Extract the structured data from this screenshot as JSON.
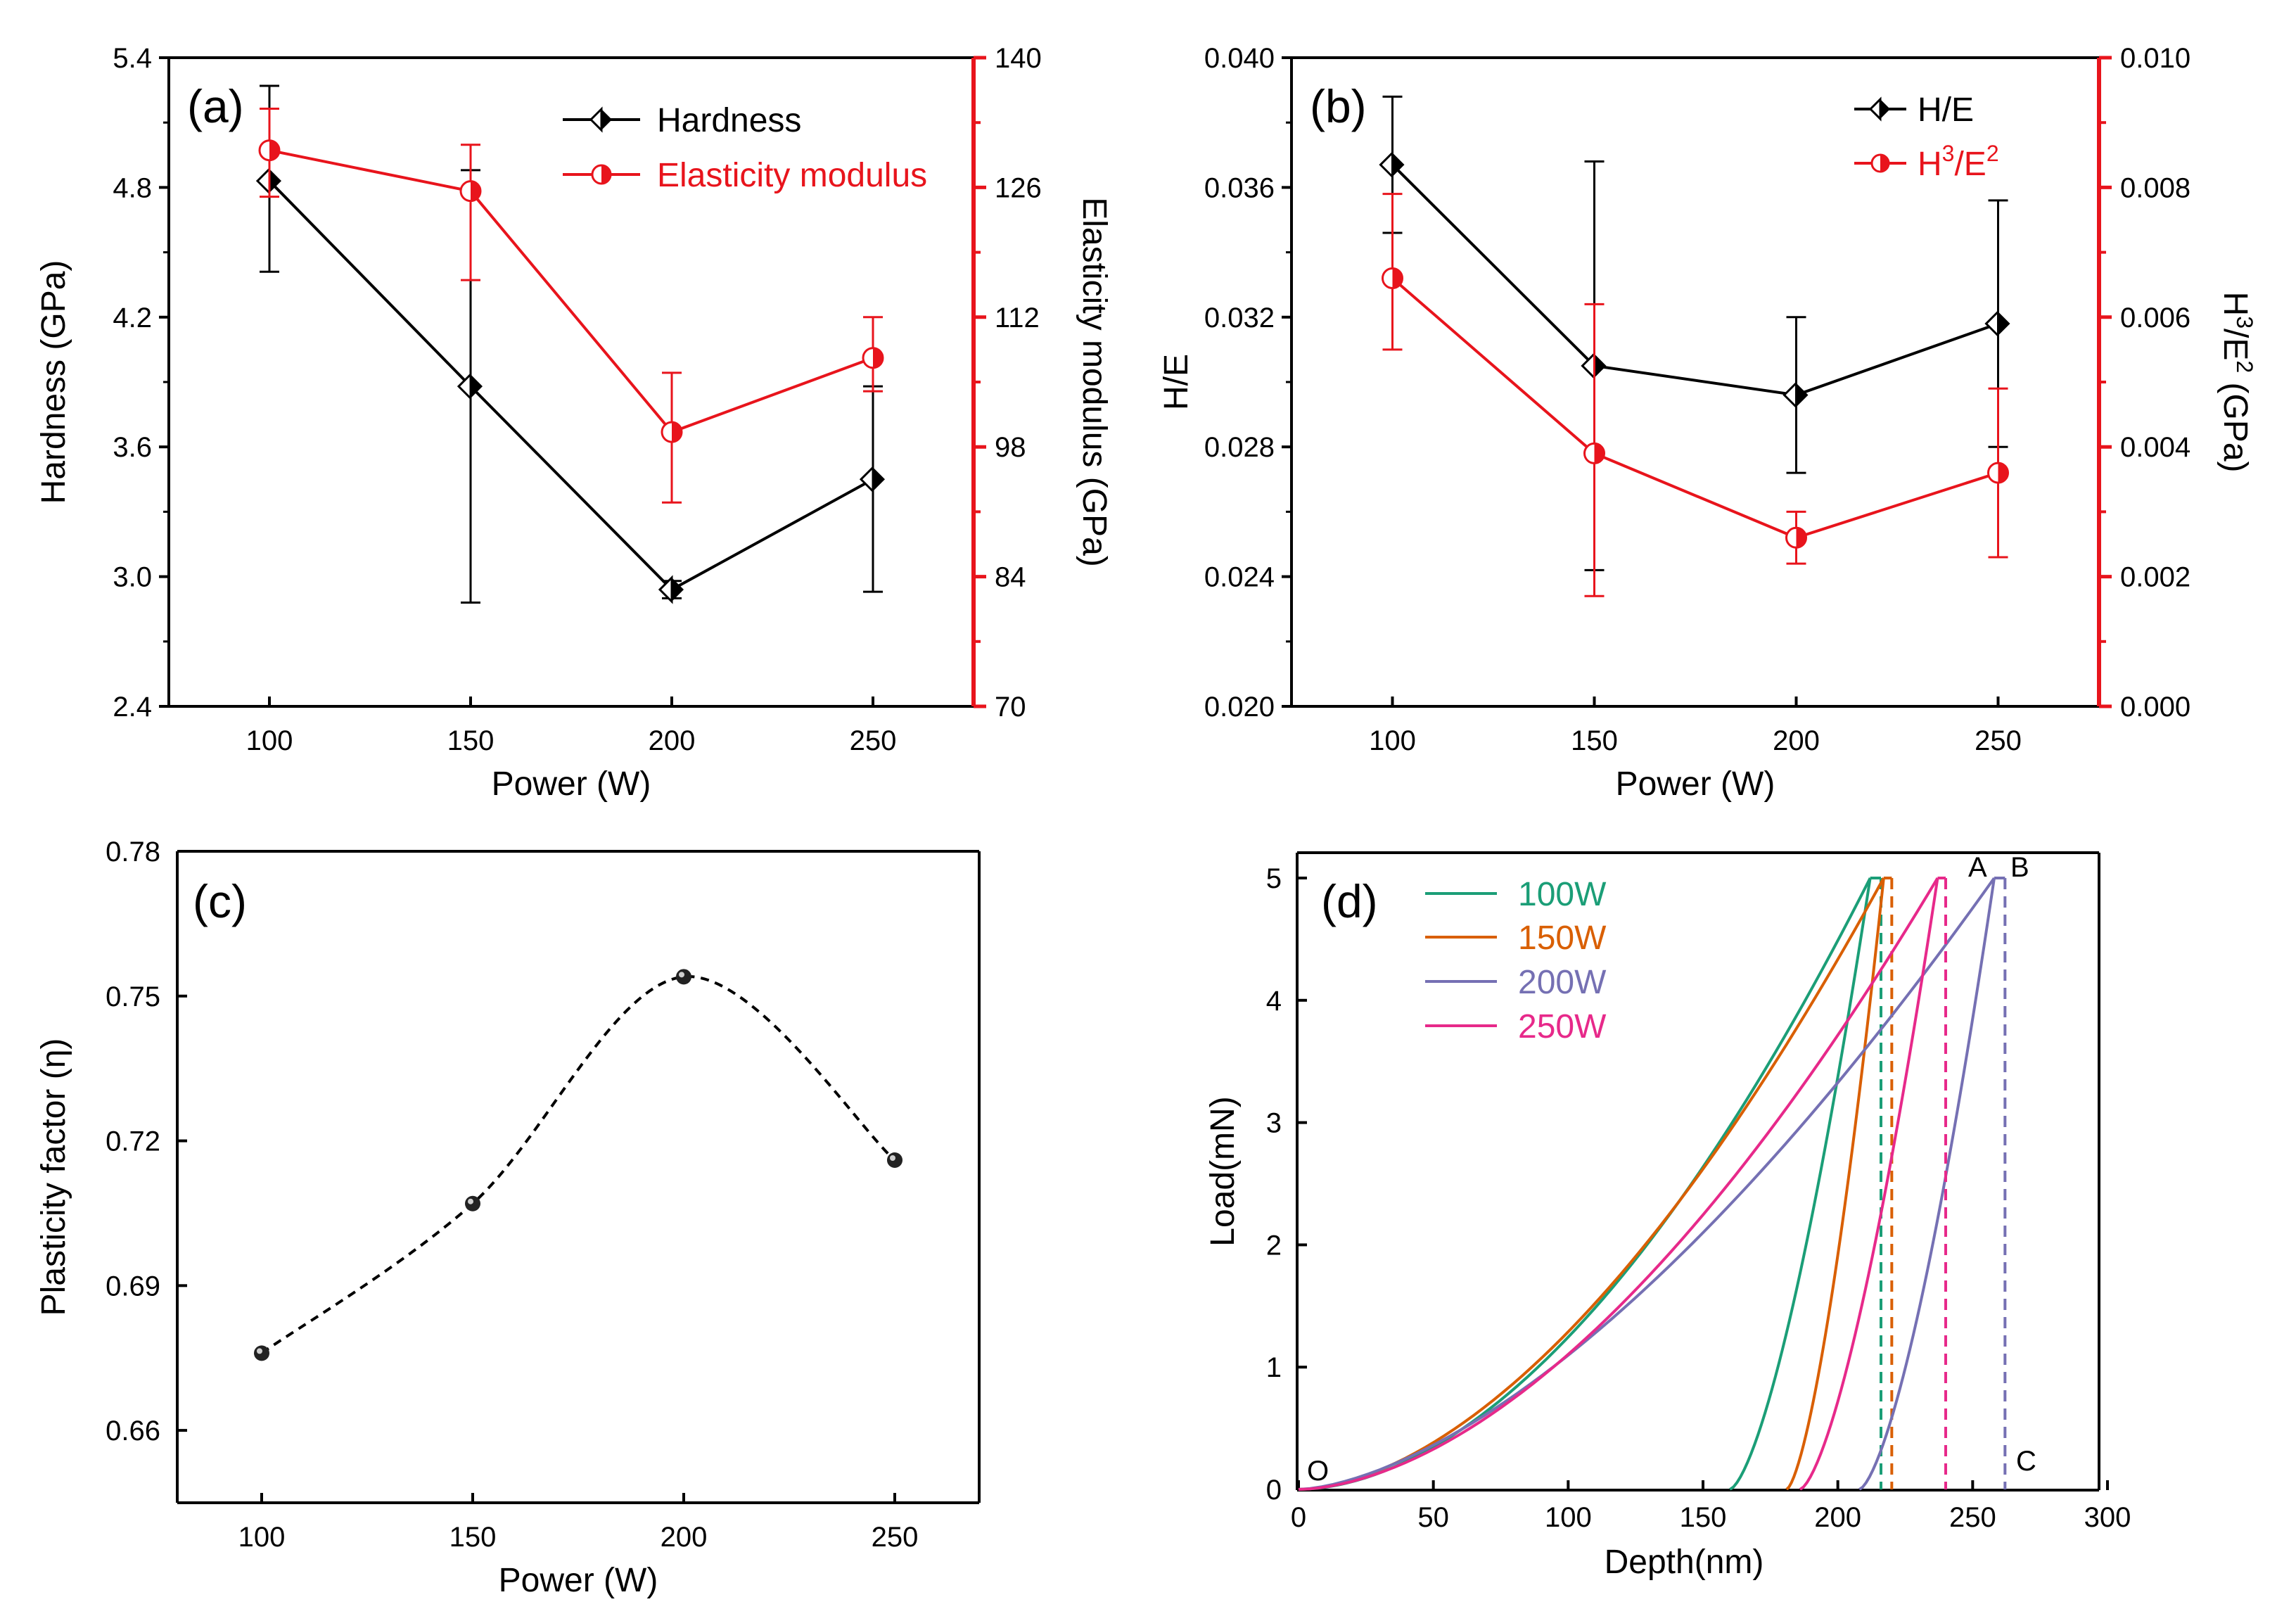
{
  "colors": {
    "black": "#000000",
    "red": "#e8141c",
    "green": "#1b9e77",
    "orange": "#d95f02",
    "purple": "#7570b3",
    "magenta": "#e7298a"
  },
  "chart_data": [
    {
      "panel_label": "(a)",
      "type": "line",
      "xlabel": "Power (W)",
      "ylabel": "Hardness (GPa)",
      "y2label": "Elasticity modulus (GPa)",
      "xlim": [
        75,
        275
      ],
      "ylim": [
        2.4,
        5.4
      ],
      "y2lim": [
        70,
        140
      ],
      "x_ticks": [
        "100",
        "150",
        "200",
        "250"
      ],
      "y_ticks": [
        "2.4",
        "3.0",
        "3.6",
        "4.2",
        "4.8",
        "5.4"
      ],
      "y2_ticks": [
        "70",
        "84",
        "98",
        "112",
        "126",
        "140"
      ],
      "series": [
        {
          "name": "Hardness",
          "axis": "left",
          "x": [
            100,
            150,
            200,
            250
          ],
          "values": [
            4.83,
            3.88,
            2.94,
            3.45
          ],
          "err_low": [
            4.41,
            2.88,
            2.9,
            2.93
          ],
          "err_high": [
            5.27,
            4.88,
            2.98,
            3.88
          ]
        },
        {
          "name": "Elasticity modulus",
          "axis": "right",
          "x": [
            100,
            150,
            200,
            250
          ],
          "values": [
            130.0,
            125.6,
            99.6,
            107.6
          ],
          "err_low": [
            125.0,
            116.0,
            92.0,
            104.0
          ],
          "err_high": [
            134.5,
            130.6,
            106.0,
            112.0
          ]
        }
      ]
    },
    {
      "panel_label": "(b)",
      "type": "line",
      "xlabel": "Power (W)",
      "ylabel": "H/E",
      "y2label_base": "H",
      "y2label_sup1": "3",
      "y2label_mid": "/E",
      "y2label_sup2": "2",
      "y2label_end": " (GPa)",
      "xlim": [
        75,
        275
      ],
      "ylim": [
        0.02,
        0.04
      ],
      "y2lim": [
        0,
        0.01
      ],
      "x_ticks": [
        "100",
        "150",
        "200",
        "250"
      ],
      "y_ticks": [
        "0.020",
        "0.024",
        "0.028",
        "0.032",
        "0.036",
        "0.040"
      ],
      "y2_ticks": [
        "0.000",
        "0.002",
        "0.004",
        "0.006",
        "0.008",
        "0.010"
      ],
      "series": [
        {
          "name": "H/E",
          "axis": "left",
          "x": [
            100,
            150,
            200,
            250
          ],
          "values": [
            0.0367,
            0.0305,
            0.0296,
            0.0318
          ],
          "err_low": [
            0.0346,
            0.0242,
            0.0272,
            0.028
          ],
          "err_high": [
            0.0388,
            0.0368,
            0.032,
            0.0356
          ]
        },
        {
          "name_base": "H",
          "name_sup1": "3",
          "name_mid": "/E",
          "name_sup2": "2",
          "axis": "right",
          "x": [
            100,
            150,
            200,
            250
          ],
          "values": [
            0.0066,
            0.0039,
            0.0026,
            0.0036
          ],
          "err_low": [
            0.0055,
            0.0017,
            0.0022,
            0.0023
          ],
          "err_high": [
            0.0079,
            0.0062,
            0.003,
            0.0049
          ]
        }
      ]
    },
    {
      "panel_label": "(c)",
      "type": "scatter",
      "xlabel": "Power (W)",
      "ylabel": "Plasticity factor (η)",
      "xlim": [
        80,
        270
      ],
      "ylim": [
        0.645,
        0.78
      ],
      "x_ticks": [
        "100",
        "150",
        "200",
        "250"
      ],
      "y_ticks": [
        "0.66",
        "0.69",
        "0.72",
        "0.75",
        "0.78"
      ],
      "series": [
        {
          "name": "Plasticity factor",
          "x": [
            100,
            150,
            200,
            250
          ],
          "values": [
            0.676,
            0.707,
            0.754,
            0.716
          ],
          "fit_line": "dashed spline"
        }
      ]
    },
    {
      "panel_label": "(d)",
      "type": "line",
      "xlabel": "Depth(nm)",
      "ylabel": "Load(mN)",
      "xlim": [
        0,
        300
      ],
      "ylim": [
        0,
        5
      ],
      "x_ticks": [
        "0",
        "50",
        "100",
        "150",
        "200",
        "250",
        "300"
      ],
      "y_ticks": [
        "0",
        "1",
        "2",
        "3",
        "4",
        "5"
      ],
      "annotations": [
        "O",
        "A",
        "B",
        "C"
      ],
      "series": [
        {
          "name": "100W",
          "max_depth_nm": 212,
          "residual_depth_nm": 160,
          "contact_depth_nm": 216,
          "peak_load_mN": 5
        },
        {
          "name": "150W",
          "max_depth_nm": 217,
          "residual_depth_nm": 181,
          "contact_depth_nm": 220,
          "peak_load_mN": 5
        },
        {
          "name": "200W",
          "max_depth_nm": 258,
          "residual_depth_nm": 208,
          "contact_depth_nm": 262,
          "peak_load_mN": 5
        },
        {
          "name": "250W",
          "max_depth_nm": 237,
          "residual_depth_nm": 186,
          "contact_depth_nm": 240,
          "peak_load_mN": 5
        }
      ]
    }
  ]
}
